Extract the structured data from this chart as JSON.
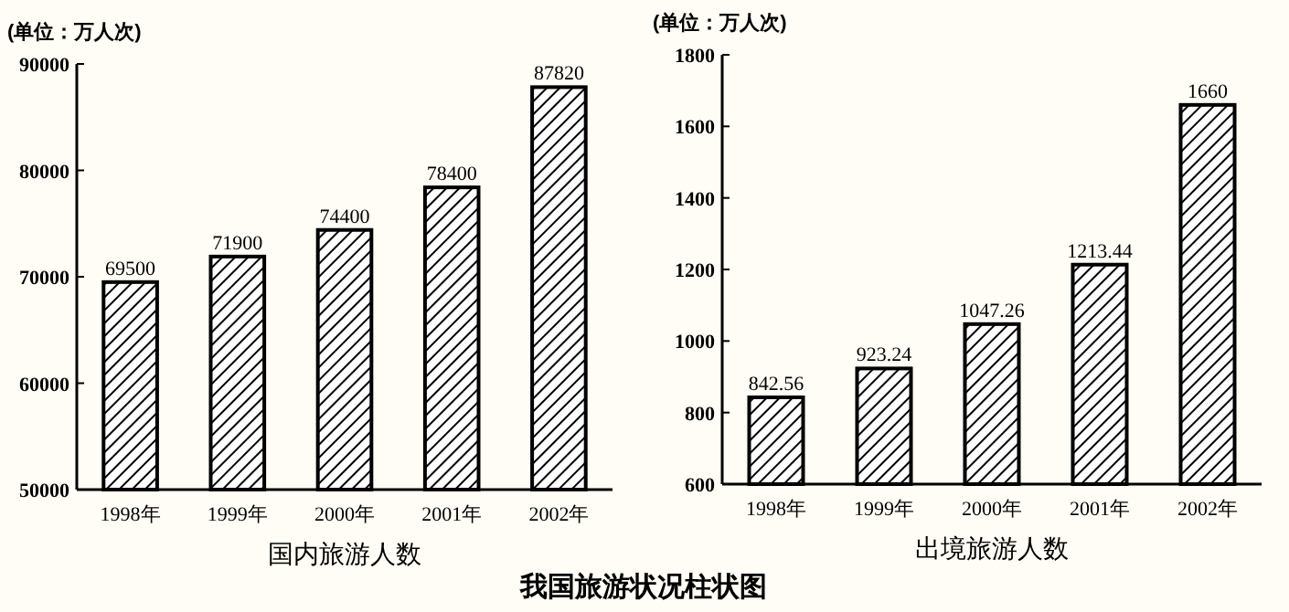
{
  "chart_data": [
    {
      "type": "bar",
      "ylabel": "(单位：万人次)",
      "xlabel": "国内旅游人数",
      "categories": [
        "1998年",
        "1999年",
        "2000年",
        "2001年",
        "2002年"
      ],
      "values": [
        69500,
        71900,
        74400,
        78400,
        87820
      ],
      "color": "#000000",
      "ylim": [
        50000,
        90000
      ],
      "yticks": [
        50000,
        60000,
        70000,
        80000,
        90000
      ],
      "data_labels": true
    },
    {
      "type": "bar",
      "ylabel": "(单位：万人次)",
      "xlabel": "出境旅游人数",
      "categories": [
        "1998年",
        "1999年",
        "2000年",
        "2001年",
        "2002年"
      ],
      "values": [
        842.56,
        923.24,
        1047.26,
        1213.44,
        1660
      ],
      "color": "#000000",
      "ylim": [
        600,
        1800
      ],
      "yticks": [
        600,
        800,
        1000,
        1200,
        1400,
        1600,
        1800
      ],
      "data_labels": true,
      "annotations": [
        "我国旅游状况柱状图"
      ]
    }
  ]
}
